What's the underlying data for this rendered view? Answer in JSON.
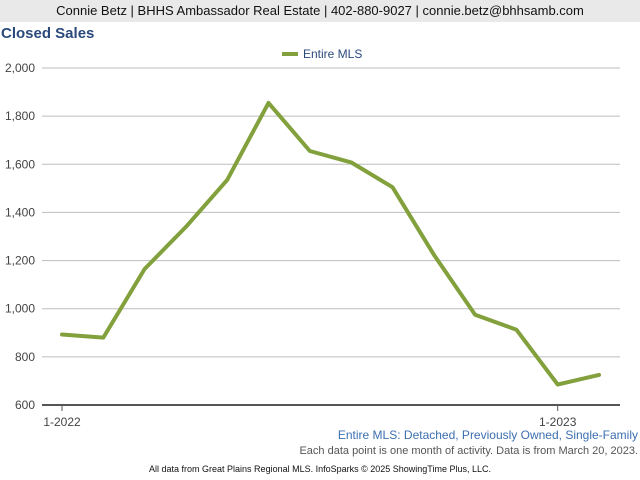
{
  "header": {
    "contact_line": "Connie Betz | BHHS Ambassador Real Estate | 402-880-9027 | connie.betz@bhhsamb.com"
  },
  "chart_data": {
    "type": "line",
    "title": "Closed Sales",
    "xlabel": "",
    "ylabel": "",
    "x": [
      "1-2022",
      "2-2022",
      "3-2022",
      "4-2022",
      "5-2022",
      "6-2022",
      "7-2022",
      "8-2022",
      "9-2022",
      "10-2022",
      "11-2022",
      "12-2022",
      "1-2023",
      "2-2023"
    ],
    "x_tick_labels": [
      "1-2022",
      "1-2023"
    ],
    "series": [
      {
        "name": "Entire MLS",
        "color": "#82a03c",
        "values": [
          893,
          880,
          1165,
          1340,
          1535,
          1855,
          1655,
          1608,
          1505,
          1225,
          975,
          913,
          685,
          725
        ]
      }
    ],
    "ylim": [
      600,
      2000
    ],
    "y_ticks": [
      600,
      800,
      1000,
      1200,
      1400,
      1600,
      1800,
      2000
    ],
    "y_tick_labels": [
      "600",
      "800",
      "1,000",
      "1,200",
      "1,400",
      "1,600",
      "1,800",
      "2,000"
    ],
    "grid": true,
    "legend_position": "top-center"
  },
  "footnotes": {
    "description": "Entire MLS: Detached, Previously Owned, Single-Family",
    "data_note": "Each data point is one month of activity. Data is from March 20, 2023.",
    "credit": "All data from Great Plains Regional MLS. InfoSparks © 2025 ShowingTime Plus, LLC."
  }
}
